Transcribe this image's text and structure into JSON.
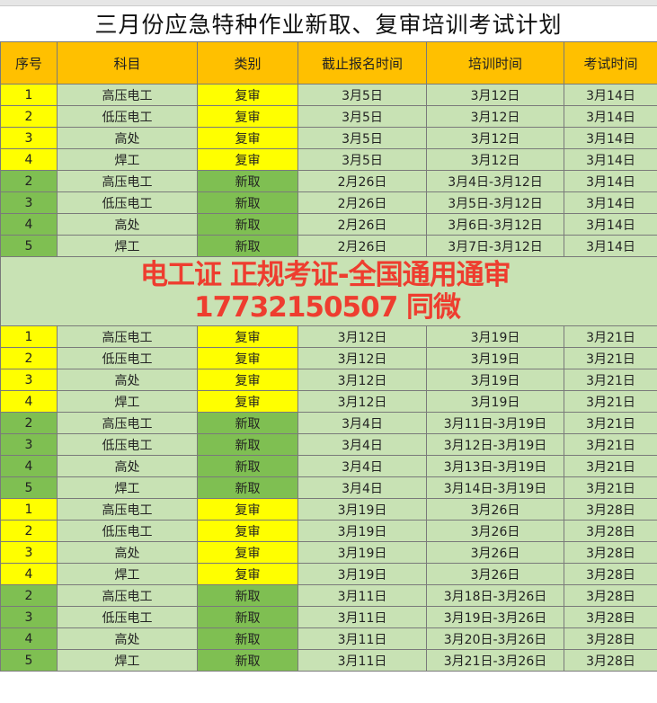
{
  "title": "三月份应急特种作业新取、复审培训考试计划",
  "headers": [
    "序号",
    "科目",
    "类别",
    "截止报名时间",
    "培训时间",
    "考试时间"
  ],
  "rows": [
    [
      "1",
      "高压电工",
      "复审",
      "3月5日",
      "3月12日",
      "3月14日"
    ],
    [
      "2",
      "低压电工",
      "复审",
      "3月5日",
      "3月12日",
      "3月14日"
    ],
    [
      "3",
      "高处",
      "复审",
      "3月5日",
      "3月12日",
      "3月14日"
    ],
    [
      "4",
      "焊工",
      "复审",
      "3月5日",
      "3月12日",
      "3月14日"
    ],
    [
      "2",
      "高压电工",
      "新取",
      "2月26日",
      "3月4日-3月12日",
      "3月14日"
    ],
    [
      "3",
      "低压电工",
      "新取",
      "2月26日",
      "3月5日-3月12日",
      "3月14日"
    ],
    [
      "4",
      "高处",
      "新取",
      "2月26日",
      "3月6日-3月12日",
      "3月14日"
    ],
    [
      "5",
      "焊工",
      "新取",
      "2月26日",
      "3月7日-3月12日",
      "3月14日"
    ],
    [
      "1",
      "高压电工",
      "复审",
      "3月12日",
      "3月19日",
      "3月21日"
    ],
    [
      "2",
      "低压电工",
      "复审",
      "3月12日",
      "3月19日",
      "3月21日"
    ],
    [
      "3",
      "高处",
      "复审",
      "3月12日",
      "3月19日",
      "3月21日"
    ],
    [
      "4",
      "焊工",
      "复审",
      "3月12日",
      "3月19日",
      "3月21日"
    ],
    [
      "2",
      "高压电工",
      "新取",
      "3月4日",
      "3月11日-3月19日",
      "3月21日"
    ],
    [
      "3",
      "低压电工",
      "新取",
      "3月4日",
      "3月12日-3月19日",
      "3月21日"
    ],
    [
      "4",
      "高处",
      "新取",
      "3月4日",
      "3月13日-3月19日",
      "3月21日"
    ],
    [
      "5",
      "焊工",
      "新取",
      "3月4日",
      "3月14日-3月19日",
      "3月21日"
    ],
    [
      "1",
      "高压电工",
      "复审",
      "3月19日",
      "3月26日",
      "3月28日"
    ],
    [
      "2",
      "低压电工",
      "复审",
      "3月19日",
      "3月26日",
      "3月28日"
    ],
    [
      "3",
      "高处",
      "复审",
      "3月19日",
      "3月26日",
      "3月28日"
    ],
    [
      "4",
      "焊工",
      "复审",
      "3月19日",
      "3月26日",
      "3月28日"
    ],
    [
      "2",
      "高压电工",
      "新取",
      "3月11日",
      "3月18日-3月26日",
      "3月28日"
    ],
    [
      "3",
      "低压电工",
      "新取",
      "3月11日",
      "3月19日-3月26日",
      "3月28日"
    ],
    [
      "4",
      "高处",
      "新取",
      "3月11日",
      "3月20日-3月26日",
      "3月28日"
    ],
    [
      "5",
      "焊工",
      "新取",
      "3月11日",
      "3月21日-3月26日",
      "3月28日"
    ]
  ],
  "overlay": {
    "line1": "电工证 正规考证-全国通用通审",
    "line2": "17732150507 同微"
  },
  "colors": {
    "header": "#ffc000",
    "renew": "#ffff00",
    "new": "#7fbf52",
    "cell": "#c8e2b4",
    "overlay": "#ee3d2f"
  }
}
